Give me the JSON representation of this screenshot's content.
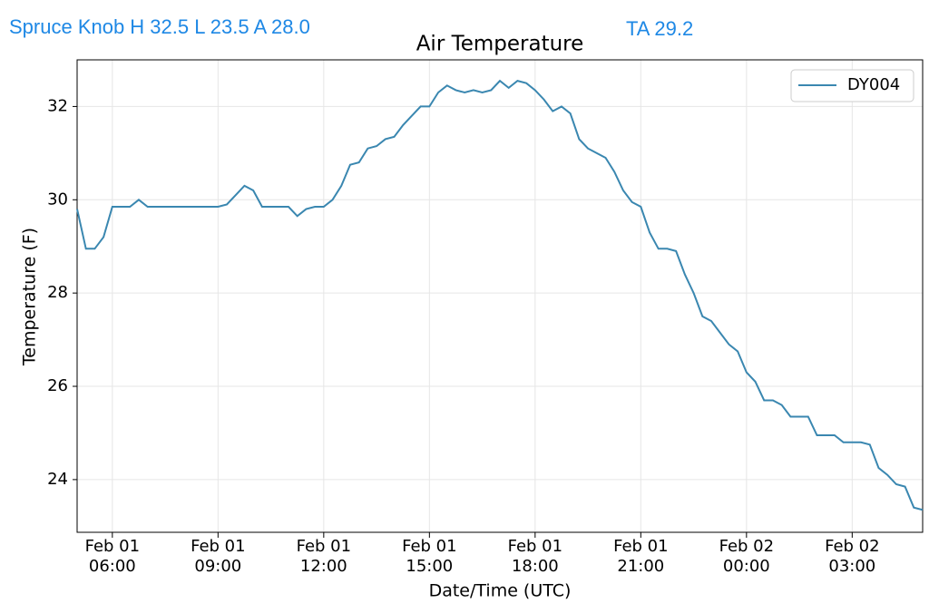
{
  "header": {
    "station": "Spruce Knob H 32.5 L 23.5 A 28.0",
    "ta": "TA 29.2"
  },
  "chart_data": {
    "type": "line",
    "title": "Air Temperature",
    "x_label": "Date/Time (UTC)",
    "y_label": "Temperature (F)",
    "x": [
      "Feb 01 05:00",
      "Feb 01 05:15",
      "Feb 01 05:30",
      "Feb 01 05:45",
      "Feb 01 06:00",
      "Feb 01 06:15",
      "Feb 01 06:30",
      "Feb 01 06:45",
      "Feb 01 07:00",
      "Feb 01 07:15",
      "Feb 01 07:30",
      "Feb 01 07:45",
      "Feb 01 08:00",
      "Feb 01 08:15",
      "Feb 01 08:30",
      "Feb 01 08:45",
      "Feb 01 09:00",
      "Feb 01 09:15",
      "Feb 01 09:30",
      "Feb 01 09:45",
      "Feb 01 10:00",
      "Feb 01 10:15",
      "Feb 01 10:30",
      "Feb 01 10:45",
      "Feb 01 11:00",
      "Feb 01 11:15",
      "Feb 01 11:30",
      "Feb 01 11:45",
      "Feb 01 12:00",
      "Feb 01 12:15",
      "Feb 01 12:30",
      "Feb 01 12:45",
      "Feb 01 13:00",
      "Feb 01 13:15",
      "Feb 01 13:30",
      "Feb 01 13:45",
      "Feb 01 14:00",
      "Feb 01 14:15",
      "Feb 01 14:30",
      "Feb 01 14:45",
      "Feb 01 15:00",
      "Feb 01 15:15",
      "Feb 01 15:30",
      "Feb 01 15:45",
      "Feb 01 16:00",
      "Feb 01 16:15",
      "Feb 01 16:30",
      "Feb 01 16:45",
      "Feb 01 17:00",
      "Feb 01 17:15",
      "Feb 01 17:30",
      "Feb 01 17:45",
      "Feb 01 18:00",
      "Feb 01 18:15",
      "Feb 01 18:30",
      "Feb 01 18:45",
      "Feb 01 19:00",
      "Feb 01 19:15",
      "Feb 01 19:30",
      "Feb 01 19:45",
      "Feb 01 20:00",
      "Feb 01 20:15",
      "Feb 01 20:30",
      "Feb 01 20:45",
      "Feb 01 21:00",
      "Feb 01 21:15",
      "Feb 01 21:30",
      "Feb 01 21:45",
      "Feb 01 22:00",
      "Feb 01 22:15",
      "Feb 01 22:30",
      "Feb 01 22:45",
      "Feb 01 23:00",
      "Feb 01 23:15",
      "Feb 01 23:30",
      "Feb 01 23:45",
      "Feb 02 00:00",
      "Feb 02 00:15",
      "Feb 02 00:30",
      "Feb 02 00:45",
      "Feb 02 01:00",
      "Feb 02 01:15",
      "Feb 02 01:30",
      "Feb 02 01:45",
      "Feb 02 02:00",
      "Feb 02 02:15",
      "Feb 02 02:30",
      "Feb 02 02:45",
      "Feb 02 03:00",
      "Feb 02 03:15",
      "Feb 02 03:30",
      "Feb 02 03:45",
      "Feb 02 04:00",
      "Feb 02 04:15",
      "Feb 02 04:30",
      "Feb 02 04:45",
      "Feb 02 05:00"
    ],
    "series": [
      {
        "name": "DY004",
        "color": "#3a87b0",
        "values": [
          29.8,
          28.95,
          28.95,
          29.2,
          29.85,
          29.85,
          29.85,
          30.0,
          29.85,
          29.85,
          29.85,
          29.85,
          29.85,
          29.85,
          29.85,
          29.85,
          29.85,
          29.9,
          30.1,
          30.3,
          30.2,
          29.85,
          29.85,
          29.85,
          29.85,
          29.65,
          29.8,
          29.85,
          29.85,
          30.0,
          30.3,
          30.75,
          30.8,
          31.1,
          31.15,
          31.3,
          31.35,
          31.6,
          31.8,
          32.0,
          32.0,
          32.3,
          32.45,
          32.35,
          32.3,
          32.35,
          32.3,
          32.35,
          32.55,
          32.4,
          32.55,
          32.5,
          32.35,
          32.15,
          31.9,
          32.0,
          31.85,
          31.3,
          31.1,
          31.0,
          30.9,
          30.6,
          30.2,
          29.95,
          29.85,
          29.3,
          28.95,
          28.95,
          28.9,
          28.4,
          28.0,
          27.5,
          27.4,
          27.15,
          26.9,
          26.75,
          26.3,
          26.1,
          25.7,
          25.7,
          25.6,
          25.35,
          25.35,
          25.35,
          24.95,
          24.95,
          24.95,
          24.8,
          24.8,
          24.8,
          24.75,
          24.25,
          24.1,
          23.9,
          23.85,
          23.4,
          23.35
        ]
      }
    ],
    "xlim": [
      "Feb 01 05:00",
      "Feb 02 05:00"
    ],
    "xticks": [
      {
        "value": "Feb 01 06:00",
        "label": "Feb 01\n06:00"
      },
      {
        "value": "Feb 01 09:00",
        "label": "Feb 01\n09:00"
      },
      {
        "value": "Feb 01 12:00",
        "label": "Feb 01\n12:00"
      },
      {
        "value": "Feb 01 15:00",
        "label": "Feb 01\n15:00"
      },
      {
        "value": "Feb 01 18:00",
        "label": "Feb 01\n18:00"
      },
      {
        "value": "Feb 01 21:00",
        "label": "Feb 01\n21:00"
      },
      {
        "value": "Feb 02 00:00",
        "label": "Feb 02\n00:00"
      },
      {
        "value": "Feb 02 03:00",
        "label": "Feb 02\n03:00"
      }
    ],
    "ylim": [
      22.87,
      33
    ],
    "yticks": [
      24,
      26,
      28,
      30,
      32
    ],
    "grid": true,
    "legend": "upper right"
  }
}
